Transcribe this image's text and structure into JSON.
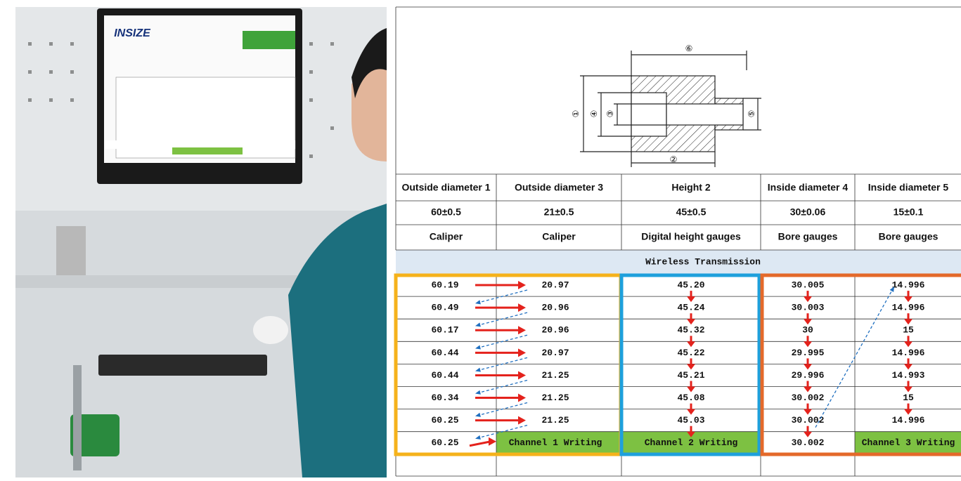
{
  "photo": {
    "logo": "INSIZE"
  },
  "drawing": {
    "labels": [
      "⑥",
      "①",
      "④",
      "③",
      "⑤",
      "②"
    ]
  },
  "table": {
    "header": [
      "Outside diameter 1",
      "Outside diameter 3",
      "Height 2",
      "Inside diameter 4",
      "Inside diameter 5"
    ],
    "rows": [
      [
        "60±0.5",
        "21±0.5",
        "45±0.5",
        "30±0.06",
        "15±0.1"
      ],
      [
        "Caliper",
        "Caliper",
        "Digital height gauges",
        "Bore gauges",
        "Bore gauges"
      ]
    ],
    "section": "Wireless Transmission",
    "data": [
      [
        "60.19",
        "20.97",
        "45.20",
        "30.005",
        "14.996"
      ],
      [
        "60.49",
        "20.96",
        "45.24",
        "30.003",
        "14.996"
      ],
      [
        "60.17",
        "20.96",
        "45.32",
        "30",
        "15"
      ],
      [
        "60.44",
        "20.97",
        "45.22",
        "29.995",
        "14.996"
      ],
      [
        "60.44",
        "21.25",
        "45.21",
        "29.996",
        "14.993"
      ],
      [
        "60.34",
        "21.25",
        "45.08",
        "30.002",
        "15"
      ],
      [
        "60.25",
        "21.25",
        "45.03",
        "30.002",
        "14.996"
      ],
      [
        "60.25",
        "Channel 1 Writing",
        "Channel 2 Writing",
        "30.002",
        "Channel 3 Writing"
      ]
    ]
  }
}
